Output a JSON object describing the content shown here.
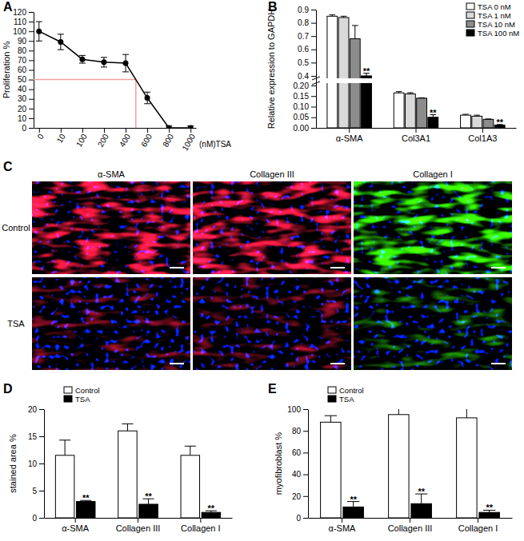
{
  "chart_data": [
    {
      "type": "line",
      "title": "A",
      "categories": [
        "0",
        "10",
        "100",
        "200",
        "400",
        "600",
        "800",
        "1000"
      ],
      "x_label": "(nM)TSA",
      "y_label": "Proliferation %",
      "values": [
        100,
        89,
        71,
        68,
        67,
        31,
        0,
        0
      ],
      "errors": [
        10,
        8,
        4,
        5,
        9,
        6,
        2,
        2
      ],
      "color": "#000000",
      "marker": "circle",
      "reference_y": 50,
      "ylim": [
        0,
        120
      ],
      "yticks": [
        0,
        10,
        20,
        30,
        40,
        50,
        60,
        70,
        80,
        90,
        100,
        110,
        120
      ]
    },
    {
      "type": "bar",
      "title": "B",
      "categories": [
        "α-SMA",
        "Col3A1",
        "Col1A3"
      ],
      "y_label": "Relative expression to GAPDH",
      "series": [
        {
          "name": "TSA 0 nM",
          "color": "#ffffff",
          "values": [
            0.85,
            0.165,
            0.06
          ],
          "errors": [
            0.01,
            0.006,
            0.004
          ]
        },
        {
          "name": "TSA 1 nM",
          "color": "#d9d9d9",
          "values": [
            0.84,
            0.16,
            0.055
          ],
          "errors": [
            0.01,
            0.006,
            0.005
          ]
        },
        {
          "name": "TSA 10 nM",
          "color": "#8c8c8c",
          "values": [
            0.68,
            0.14,
            0.04
          ],
          "errors": [
            0.1,
            0.002,
            0.002
          ]
        },
        {
          "name": "TSA 100 nM",
          "color": "#000000",
          "values": [
            0.4,
            0.05,
            0.013
          ],
          "errors": [
            0.02,
            0.012,
            0.003
          ],
          "significance": [
            "**",
            "**",
            "**"
          ]
        }
      ],
      "ylim": [
        0,
        0.9
      ],
      "axis_break": [
        0.2,
        0.4
      ],
      "yticks": [
        {
          "value": 0,
          "label": "0.00"
        },
        0.05,
        {
          "value": 0.1,
          "label": "0.10"
        },
        0.15,
        {
          "value": 0.2,
          "label": "0.20"
        },
        0.4,
        0.5,
        0.6,
        0.7,
        0.8,
        0.9
      ],
      "legend": "upper right"
    },
    {
      "type": "bar",
      "title": "D",
      "categories": [
        "α-SMA",
        "Collagen III",
        "Collagen I"
      ],
      "y_label": "stained area %",
      "series": [
        {
          "name": "Control",
          "color": "#ffffff",
          "values": [
            11.5,
            16,
            11.5
          ],
          "errors": [
            2.8,
            1.3,
            1.7
          ]
        },
        {
          "name": "TSA",
          "color": "#000000",
          "values": [
            3,
            2.5,
            1
          ],
          "errors": [
            0.2,
            1,
            0.3
          ],
          "significance": [
            "**",
            "**",
            "**"
          ]
        }
      ],
      "ylim": [
        0,
        20
      ],
      "yticks": [
        0,
        5,
        10,
        15,
        20
      ],
      "legend": "upper left"
    },
    {
      "type": "bar",
      "title": "E",
      "categories": [
        "α-SMA",
        "Collagen III",
        "Collagen I"
      ],
      "y_label": "myofibroblast %",
      "series": [
        {
          "name": "Control",
          "color": "#ffffff",
          "values": [
            88,
            95,
            92
          ],
          "errors": [
            6,
            6,
            9
          ]
        },
        {
          "name": "TSA",
          "color": "#000000",
          "values": [
            10,
            13,
            5
          ],
          "errors": [
            5,
            9,
            2
          ],
          "significance": [
            "**",
            "**",
            "**"
          ]
        }
      ],
      "ylim": [
        0,
        100
      ],
      "yticks": [
        0,
        20,
        40,
        60,
        80,
        100
      ],
      "legend": "upper left"
    }
  ],
  "panel_c": {
    "title": "C",
    "columns": [
      "α-SMA",
      "Collagen III",
      "Collagen I"
    ],
    "rows": [
      "Control",
      "TSA"
    ]
  }
}
